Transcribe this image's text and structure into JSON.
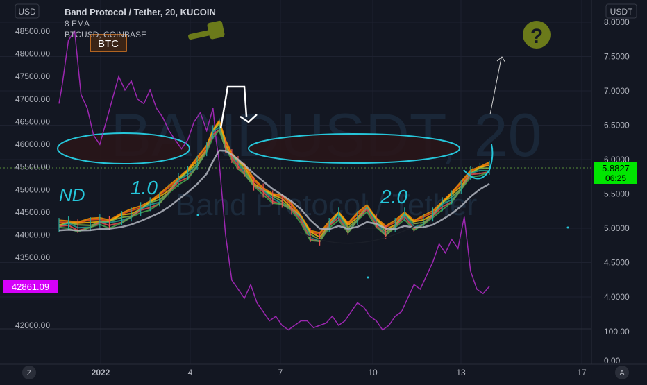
{
  "header": {
    "title": "Band Protocol / Tether, 20, KUCOIN",
    "indicator": "8 EMA",
    "overlay_symbol": "BTCUSD, COINBASE",
    "left_currency": "USD",
    "right_currency": "USDT"
  },
  "annotations": {
    "btc_label": "BTC",
    "cup_left_text": "1.0",
    "cup_right_text": "2.0",
    "question_mark": "?"
  },
  "watermark": {
    "symbol": "BANDUSDT, 20",
    "name": "Band Protocol / Tether"
  },
  "badges": {
    "btc_price": "42861.09",
    "band_price": "5.8827",
    "countdown": "06:25"
  },
  "footer": {
    "z_button": "Z",
    "a_button": "A"
  },
  "colors": {
    "background": "#131722",
    "btc_line": "#9c27b0",
    "cup_outline": "#26c6da",
    "candles_up": "#26a69a",
    "candles_down": "#ef5350",
    "ema": "#b2b5be",
    "price_badge": "#00e600",
    "btc_badge": "#d500f9",
    "olive_icons": "#6b7a1a"
  },
  "chart_data": {
    "type": "line",
    "x_tick_labels": [
      "2022",
      "4",
      "7",
      "10",
      "13",
      "17"
    ],
    "left_axis": {
      "ticks": [
        "48500.00",
        "48000.00",
        "47500.00",
        "47000.00",
        "46500.00",
        "46000.00",
        "45500.00",
        "45000.00",
        "44500.00",
        "44000.00",
        "43500.00",
        "42000.00"
      ],
      "ylim": [
        42000,
        49000
      ]
    },
    "right_axis": {
      "ticks": [
        "8.0000",
        "7.5000",
        "7.0000",
        "6.5000",
        "6.0000",
        "5.5000",
        "5.0000",
        "4.5000",
        "4.0000"
      ],
      "ylim": [
        3.6,
        8.2
      ]
    },
    "volume_axis": {
      "ticks": [
        "100.00",
        "0.00"
      ]
    },
    "series": [
      {
        "name": "BANDUSDT",
        "x": [
          0,
          0.3,
          0.6,
          1.0,
          1.3,
          1.6,
          2.0,
          2.3,
          2.6,
          2.9,
          3.2,
          3.5,
          3.8,
          4.1,
          4.4,
          4.7,
          4.9,
          5.1,
          5.3,
          5.5,
          5.7,
          5.9,
          6.2,
          6.5,
          6.8,
          7.1,
          7.4,
          7.7,
          8.0,
          8.3,
          8.6,
          8.9,
          9.2,
          9.5,
          9.8,
          10.1,
          10.4,
          10.7,
          11.0,
          11.3,
          11.6,
          11.9,
          12.2,
          12.5,
          12.8,
          13.1,
          13.4,
          13.7
        ],
        "values": [
          5.05,
          5.07,
          5.03,
          5.06,
          5.1,
          5.08,
          5.15,
          5.2,
          5.28,
          5.35,
          5.42,
          5.55,
          5.7,
          5.8,
          5.95,
          6.15,
          6.4,
          6.5,
          6.2,
          6.05,
          5.95,
          5.85,
          5.65,
          5.55,
          5.45,
          5.4,
          5.3,
          5.15,
          4.9,
          4.85,
          5.05,
          5.2,
          5.0,
          5.15,
          5.3,
          5.1,
          4.95,
          5.05,
          5.2,
          5.05,
          5.1,
          5.2,
          5.35,
          5.45,
          5.6,
          5.8,
          5.85,
          5.88
        ]
      },
      {
        "name": "BTCUSD",
        "x": [
          0,
          0.1,
          0.3,
          0.5,
          0.7,
          0.9,
          1.1,
          1.3,
          1.5,
          1.7,
          1.9,
          2.1,
          2.3,
          2.5,
          2.7,
          2.9,
          3.1,
          3.3,
          3.5,
          3.7,
          3.9,
          4.1,
          4.3,
          4.5,
          4.7,
          4.9,
          5.0,
          5.1,
          5.3,
          5.5,
          5.7,
          5.9,
          6.1,
          6.3,
          6.5,
          6.7,
          6.9,
          7.1,
          7.3,
          7.5,
          7.7,
          7.9,
          8.1,
          8.3,
          8.5,
          8.7,
          8.9,
          9.1,
          9.3,
          9.5,
          9.7,
          9.9,
          10.1,
          10.3,
          10.5,
          10.7,
          10.9,
          11.1,
          11.3,
          11.5,
          11.7,
          11.9,
          12.1,
          12.3,
          12.5,
          12.7,
          12.9,
          13.1,
          13.3,
          13.5,
          13.7
        ],
        "values": [
          46900,
          47300,
          48300,
          48500,
          47100,
          46800,
          46200,
          46000,
          46500,
          47000,
          47500,
          47200,
          47400,
          47000,
          46900,
          47200,
          46800,
          46600,
          46300,
          46100,
          45900,
          46100,
          46500,
          46700,
          46300,
          46800,
          46100,
          45600,
          44000,
          43000,
          42800,
          42600,
          42900,
          42500,
          42300,
          42100,
          42200,
          42000,
          41900,
          42000,
          42100,
          42100,
          41950,
          42000,
          42050,
          42200,
          42000,
          42100,
          42300,
          42500,
          42400,
          42200,
          42100,
          41900,
          42000,
          42200,
          42300,
          42600,
          42900,
          42800,
          43100,
          43400,
          43800,
          43600,
          43900,
          43700,
          44400,
          43200,
          42800,
          42700,
          42861
        ]
      }
    ]
  }
}
